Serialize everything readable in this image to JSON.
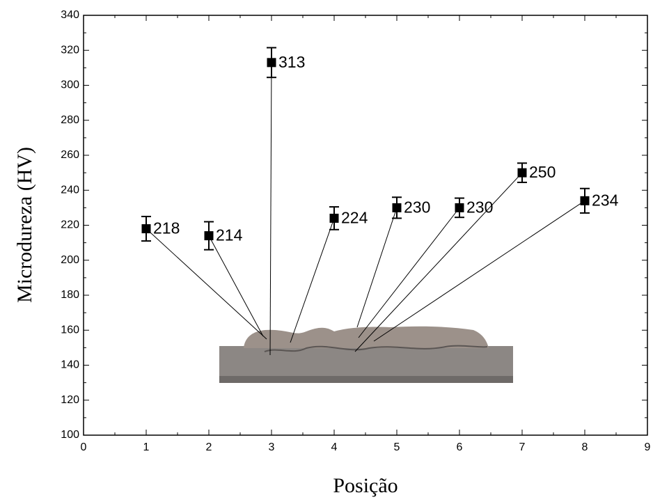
{
  "chart_data": {
    "type": "scatter",
    "x_label": "Posição",
    "y_label": "Microdureza (HV)",
    "x": [
      1,
      2,
      3,
      4,
      5,
      6,
      7,
      8
    ],
    "values": [
      218,
      214,
      313,
      224,
      230,
      230,
      250,
      234
    ],
    "errors": [
      7,
      8,
      8.5,
      6.5,
      6,
      5.5,
      5.5,
      7
    ],
    "color": "#000000",
    "xlim": [
      0,
      9
    ],
    "xticks": [
      0,
      1,
      2,
      3,
      4,
      5,
      6,
      7,
      8,
      9
    ],
    "ylim": [
      100,
      340
    ],
    "yticks": [
      100,
      120,
      140,
      160,
      180,
      200,
      220,
      240,
      260,
      280,
      300,
      320,
      340
    ]
  }
}
